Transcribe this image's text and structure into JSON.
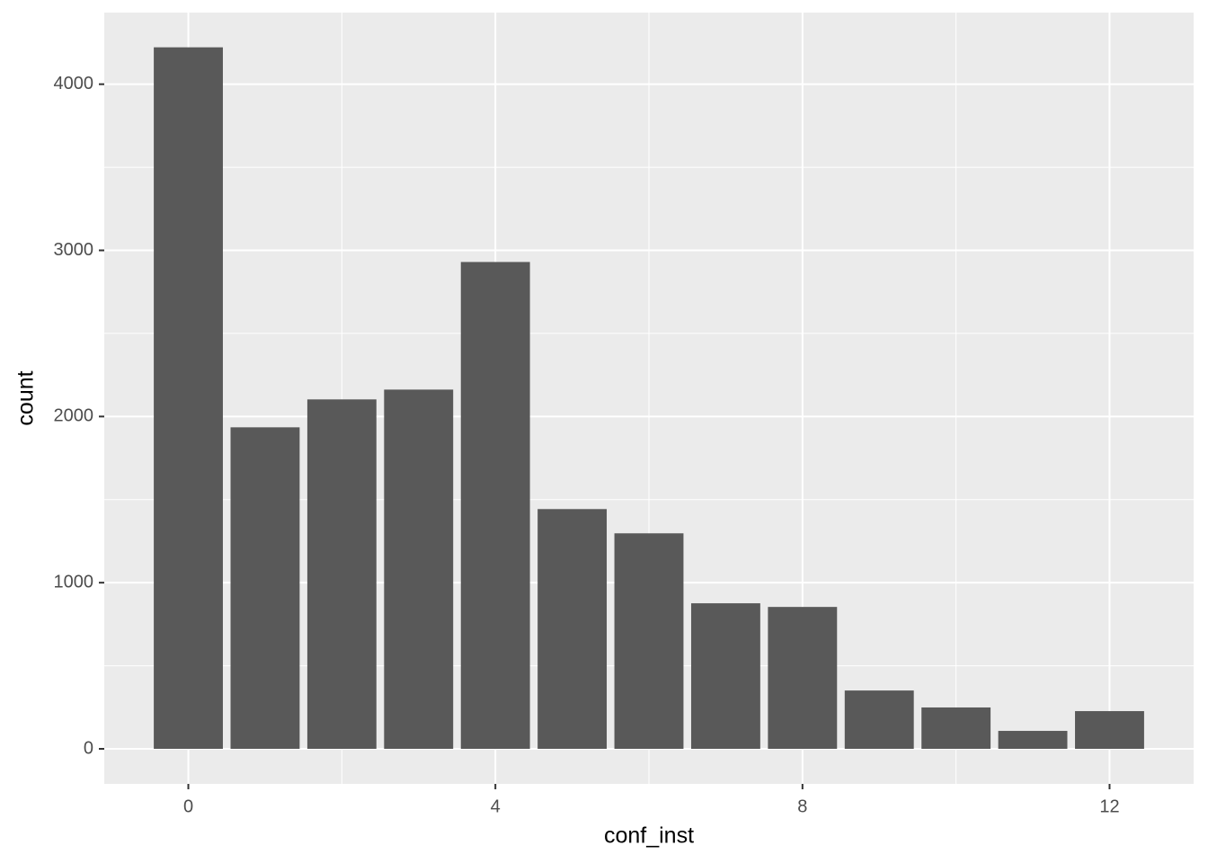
{
  "chart_data": {
    "type": "bar",
    "xlabel": "conf_inst",
    "ylabel": "count",
    "x": [
      0,
      1,
      2,
      3,
      4,
      5,
      6,
      7,
      8,
      9,
      10,
      11,
      12
    ],
    "values": [
      4222,
      1935,
      2103,
      2162,
      2930,
      1443,
      1297,
      876,
      854,
      351,
      249,
      108,
      227
    ],
    "color": "#595959",
    "xlim": [
      -1.095,
      13.095
    ],
    "xticks": [
      0,
      4,
      8,
      12
    ],
    "xminor": [
      2,
      6,
      10
    ],
    "ylim": [
      -211,
      4431
    ],
    "yticks": [
      0,
      1000,
      2000,
      3000,
      4000
    ],
    "yminor": [
      500,
      1500,
      2500,
      3500
    ],
    "grid": true
  }
}
